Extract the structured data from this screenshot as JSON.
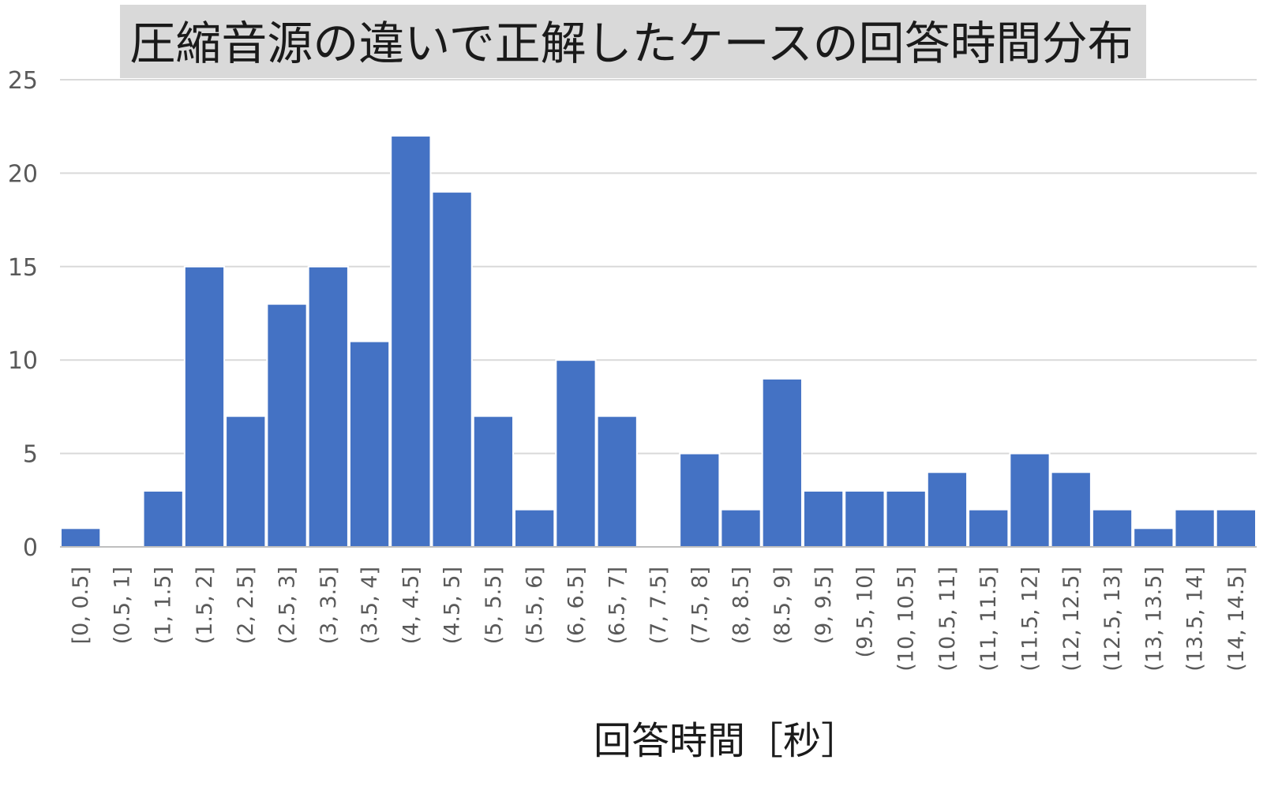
{
  "chart_data": {
    "type": "bar",
    "title": "圧縮音源の違いで正解したケースの回答時間分布",
    "xlabel": "回答時間［秒］",
    "ylabel": "",
    "ylim": [
      0,
      25
    ],
    "yticks": [
      "0",
      "5",
      "10",
      "15",
      "20",
      "25"
    ],
    "grid": true,
    "bar_color": "#4472c4",
    "categories": [
      "[0, 0.5]",
      "(0.5, 1]",
      "(1, 1.5]",
      "(1.5, 2]",
      "(2, 2.5]",
      "(2.5, 3]",
      "(3, 3.5]",
      "(3.5, 4]",
      "(4, 4.5]",
      "(4.5, 5]",
      "(5, 5.5]",
      "(5.5, 6]",
      "(6, 6.5]",
      "(6.5, 7]",
      "(7, 7.5]",
      "(7.5, 8]",
      "(8, 8.5]",
      "(8.5, 9]",
      "(9, 9.5]",
      "(9.5, 10]",
      "(10, 10.5]",
      "(10.5, 11]",
      "(11, 11.5]",
      "(11.5, 12]",
      "(12, 12.5]",
      "(12.5, 13]",
      "(13, 13.5]",
      "(13.5, 14]",
      "(14, 14.5]"
    ],
    "values": [
      1,
      0,
      3,
      15,
      7,
      13,
      15,
      11,
      22,
      19,
      7,
      2,
      10,
      7,
      0,
      5,
      2,
      9,
      3,
      3,
      3,
      4,
      2,
      5,
      4,
      2,
      1,
      2,
      2
    ]
  }
}
